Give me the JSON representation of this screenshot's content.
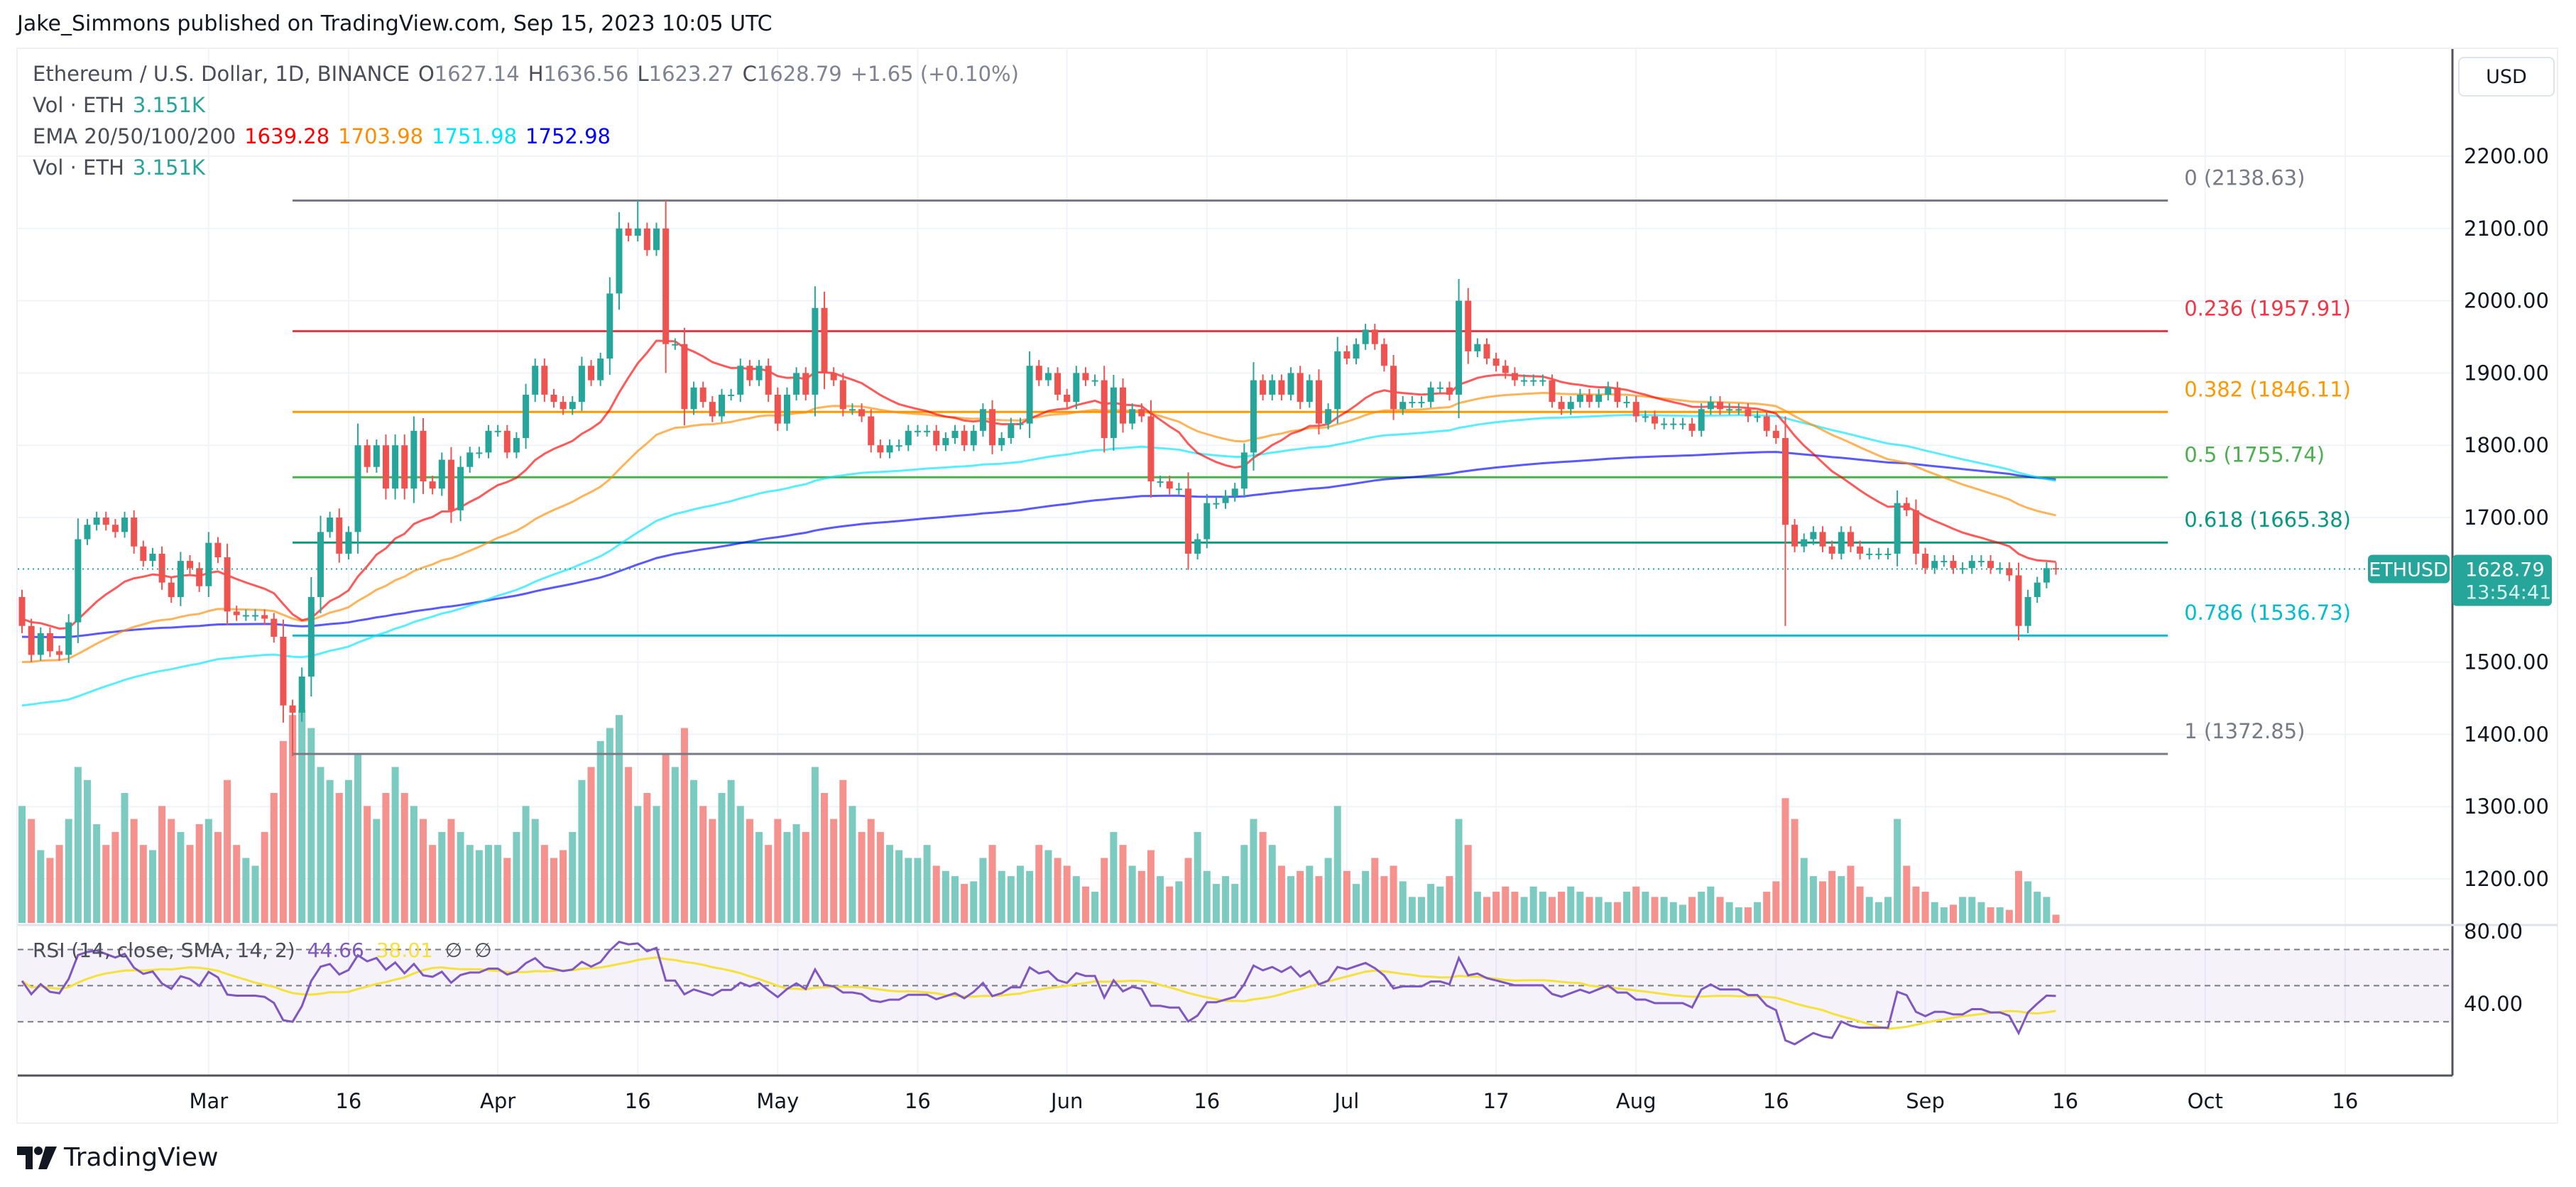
{
  "publisher": "Jake_Simmons published on TradingView.com, Sep 15, 2023 10:05 UTC",
  "legend": {
    "symbol": "Ethereum / U.S. Dollar, 1D, BINANCE",
    "o_label": "O",
    "o": "1627.14",
    "h_label": "H",
    "h": "1636.56",
    "l_label": "L",
    "l": "1623.27",
    "c_label": "C",
    "c": "1628.79",
    "change": "+1.65 (+0.10%)",
    "vol_label": "Vol · ETH",
    "vol_value": "3.151K",
    "ema_label": "EMA 20/50/100/200",
    "ema20": "1639.28",
    "ema50": "1703.98",
    "ema100": "1751.98",
    "ema200": "1752.98",
    "vol2_label": "Vol · ETH",
    "vol2_value": "3.151K"
  },
  "currency_button": "USD",
  "price_tag": {
    "symbol": "ETHUSD",
    "price": "1628.79",
    "countdown": "13:54:41"
  },
  "rsi_legend": {
    "label": "RSI (14, close, SMA, 14, 2)",
    "rsi": "44.66",
    "sma": "38.01",
    "na1": "∅",
    "na2": "∅"
  },
  "logo_text": "TradingView",
  "colors": {
    "up": "#26a69a",
    "down": "#ef5350",
    "vol_up": "#7ccbc1",
    "vol_down": "#f5928d",
    "ema20": "#ff0000",
    "ema50": "#ff8c00",
    "ema100": "#00e5ff",
    "ema200": "#0000ff",
    "rsi": "#7e57c2",
    "rsi_sma": "#f5e13a"
  },
  "chart_data": {
    "type": "candlestick",
    "symbol": "ETHUSD",
    "interval": "1D",
    "ylim": [
      1130,
      2250
    ],
    "price_ticks": [
      "2200.00",
      "2100.00",
      "2000.00",
      "1900.00",
      "1800.00",
      "1700.00",
      "1500.00",
      "1400.00",
      "1300.00",
      "1200.00"
    ],
    "rsi_ticks": [
      "80.00",
      "40.00"
    ],
    "rsi_bands": [
      70,
      50,
      30
    ],
    "x_ticks": [
      {
        "label": "Mar",
        "date": "2023-03-01"
      },
      {
        "label": "16",
        "date": "2023-03-16"
      },
      {
        "label": "Apr",
        "date": "2023-04-01"
      },
      {
        "label": "16",
        "date": "2023-04-16"
      },
      {
        "label": "May",
        "date": "2023-05-01"
      },
      {
        "label": "16",
        "date": "2023-05-16"
      },
      {
        "label": "Jun",
        "date": "2023-06-01"
      },
      {
        "label": "16",
        "date": "2023-06-16"
      },
      {
        "label": "Jul",
        "date": "2023-07-01"
      },
      {
        "label": "17",
        "date": "2023-07-17"
      },
      {
        "label": "Aug",
        "date": "2023-08-01"
      },
      {
        "label": "16",
        "date": "2023-08-16"
      },
      {
        "label": "Sep",
        "date": "2023-09-01"
      },
      {
        "label": "16",
        "date": "2023-09-16"
      },
      {
        "label": "Oct",
        "date": "2023-10-01"
      },
      {
        "label": "16",
        "date": "2023-10-16"
      }
    ],
    "daily": [
      {
        "month": "2023-02",
        "first_day": 9,
        "close": [
          1550,
          1510,
          1540,
          1515,
          1510,
          1555,
          1670,
          1690,
          1700,
          1690,
          1680,
          1700,
          1660,
          1640,
          1650,
          1610,
          1590,
          1640,
          1630,
          1605
        ],
        "volume_k": [
          45,
          40,
          28,
          25,
          30,
          40,
          60,
          55,
          38,
          30,
          35,
          50,
          40,
          30,
          28,
          45,
          40,
          35,
          30,
          38
        ]
      },
      {
        "month": "2023-03",
        "first_day": 1,
        "close": [
          1665,
          1645,
          1570,
          1565,
          1565,
          1565,
          1560,
          1535,
          1440,
          1430,
          1480,
          1590,
          1680,
          1700,
          1650,
          1680,
          1800,
          1770,
          1800,
          1740,
          1800,
          1740,
          1820,
          1750,
          1740,
          1780,
          1710,
          1770,
          1790,
          1790,
          1820
        ],
        "volume_k": [
          40,
          35,
          55,
          30,
          25,
          22,
          35,
          50,
          70,
          80,
          82,
          75,
          60,
          55,
          50,
          55,
          65,
          45,
          40,
          50,
          60,
          50,
          45,
          40,
          30,
          35,
          40,
          35,
          30,
          28,
          30
        ]
      },
      {
        "month": "2023-04",
        "first_day": 1,
        "close": [
          1820,
          1790,
          1810,
          1870,
          1910,
          1870,
          1860,
          1850,
          1860,
          1910,
          1890,
          1920,
          2010,
          2100,
          2090,
          2100,
          2070,
          2100,
          1940,
          1940,
          1850,
          1880,
          1860,
          1840,
          1870,
          1870,
          1910,
          1890,
          1910,
          1870
        ],
        "volume_k": [
          30,
          25,
          35,
          45,
          40,
          30,
          25,
          28,
          35,
          55,
          60,
          70,
          75,
          80,
          60,
          45,
          50,
          45,
          65,
          60,
          75,
          55,
          45,
          40,
          50,
          55,
          45,
          40,
          35,
          30
        ]
      },
      {
        "month": "2023-05",
        "first_day": 1,
        "close": [
          1830,
          1870,
          1900,
          1870,
          1990,
          1900,
          1890,
          1850,
          1850,
          1840,
          1800,
          1790,
          1800,
          1800,
          1820,
          1820,
          1820,
          1800,
          1810,
          1820,
          1800,
          1820,
          1850,
          1800,
          1810,
          1830,
          1830,
          1910,
          1890,
          1900,
          1870
        ],
        "volume_k": [
          40,
          35,
          38,
          35,
          60,
          50,
          40,
          55,
          45,
          35,
          40,
          35,
          30,
          28,
          25,
          25,
          30,
          22,
          20,
          18,
          15,
          16,
          25,
          30,
          20,
          18,
          22,
          20,
          30,
          28,
          25
        ]
      },
      {
        "month": "2023-06",
        "first_day": 1,
        "close": [
          1860,
          1900,
          1890,
          1890,
          1810,
          1880,
          1830,
          1850,
          1840,
          1750,
          1750,
          1740,
          1740,
          1650,
          1670,
          1720,
          1720,
          1730,
          1740,
          1790,
          1890,
          1870,
          1890,
          1870,
          1900,
          1860,
          1890,
          1830,
          1850,
          1930
        ],
        "volume_k": [
          22,
          18,
          14,
          12,
          25,
          35,
          30,
          22,
          20,
          28,
          18,
          14,
          16,
          25,
          35,
          20,
          15,
          18,
          15,
          30,
          40,
          35,
          30,
          22,
          18,
          20,
          22,
          18,
          25,
          45
        ]
      },
      {
        "month": "2023-07",
        "first_day": 1,
        "close": [
          1920,
          1940,
          1960,
          1940,
          1910,
          1850,
          1860,
          1860,
          1860,
          1880,
          1880,
          1870,
          2000,
          1930,
          1940,
          1920,
          1910,
          1900,
          1890,
          1890,
          1890,
          1890,
          1860,
          1850,
          1860,
          1870,
          1860,
          1870,
          1880,
          1860,
          1860
        ],
        "volume_k": [
          20,
          15,
          20,
          25,
          18,
          22,
          16,
          10,
          10,
          15,
          14,
          18,
          40,
          30,
          12,
          10,
          12,
          14,
          12,
          10,
          14,
          12,
          10,
          12,
          14,
          12,
          10,
          10,
          8,
          8,
          12
        ]
      },
      {
        "month": "2023-08",
        "first_day": 1,
        "close": [
          1840,
          1840,
          1830,
          1830,
          1830,
          1830,
          1820,
          1850,
          1860,
          1850,
          1850,
          1850,
          1840,
          1840,
          1820,
          1810,
          1690,
          1660,
          1670,
          1680,
          1660,
          1650,
          1680,
          1660,
          1650,
          1650,
          1650,
          1650,
          1720,
          1710,
          1650
        ],
        "volume_k": [
          14,
          12,
          10,
          10,
          8,
          7,
          10,
          12,
          14,
          10,
          8,
          6,
          6,
          8,
          12,
          16,
          48,
          40,
          25,
          18,
          16,
          20,
          18,
          22,
          14,
          10,
          8,
          10,
          40,
          22,
          14
        ]
      },
      {
        "month": "2023-09",
        "first_day": 1,
        "close": [
          1630,
          1640,
          1640,
          1630,
          1630,
          1640,
          1640,
          1630,
          1630,
          1620,
          1550,
          1590,
          1610,
          1630,
          1628.79
        ],
        "volume_k": [
          12,
          8,
          6,
          7,
          10,
          10,
          8,
          6,
          6,
          5,
          20,
          16,
          12,
          10,
          3.151
        ]
      }
    ],
    "wick_extremes": [
      {
        "date": "2023-03-10",
        "low": 1370
      },
      {
        "date": "2023-04-16",
        "high": 2140
      },
      {
        "date": "2023-05-05",
        "high": 2020
      },
      {
        "date": "2023-07-13",
        "high": 2030
      },
      {
        "date": "2023-08-17",
        "low": 1550
      },
      {
        "date": "2023-09-11",
        "low": 1530
      }
    ],
    "fibonacci": {
      "from_date": "2023-03-10",
      "to_date": "2023-09-27",
      "levels": [
        {
          "label": "0 (2138.63)",
          "value": 2138.63,
          "color": "#787b86"
        },
        {
          "label": "0.236 (1957.91)",
          "value": 1957.91,
          "color": "#f23645"
        },
        {
          "label": "0.382 (1846.11)",
          "value": 1846.11,
          "color": "#ff9800"
        },
        {
          "label": "0.5 (1755.74)",
          "value": 1755.74,
          "color": "#4caf50"
        },
        {
          "label": "0.618 (1665.38)",
          "value": 1665.38,
          "color": "#089981"
        },
        {
          "label": "0.786 (1536.73)",
          "value": 1536.73,
          "color": "#00bcd4"
        },
        {
          "label": "1 (1372.85)",
          "value": 1372.85,
          "color": "#787b86"
        }
      ]
    },
    "last_price": 1628.79
  }
}
